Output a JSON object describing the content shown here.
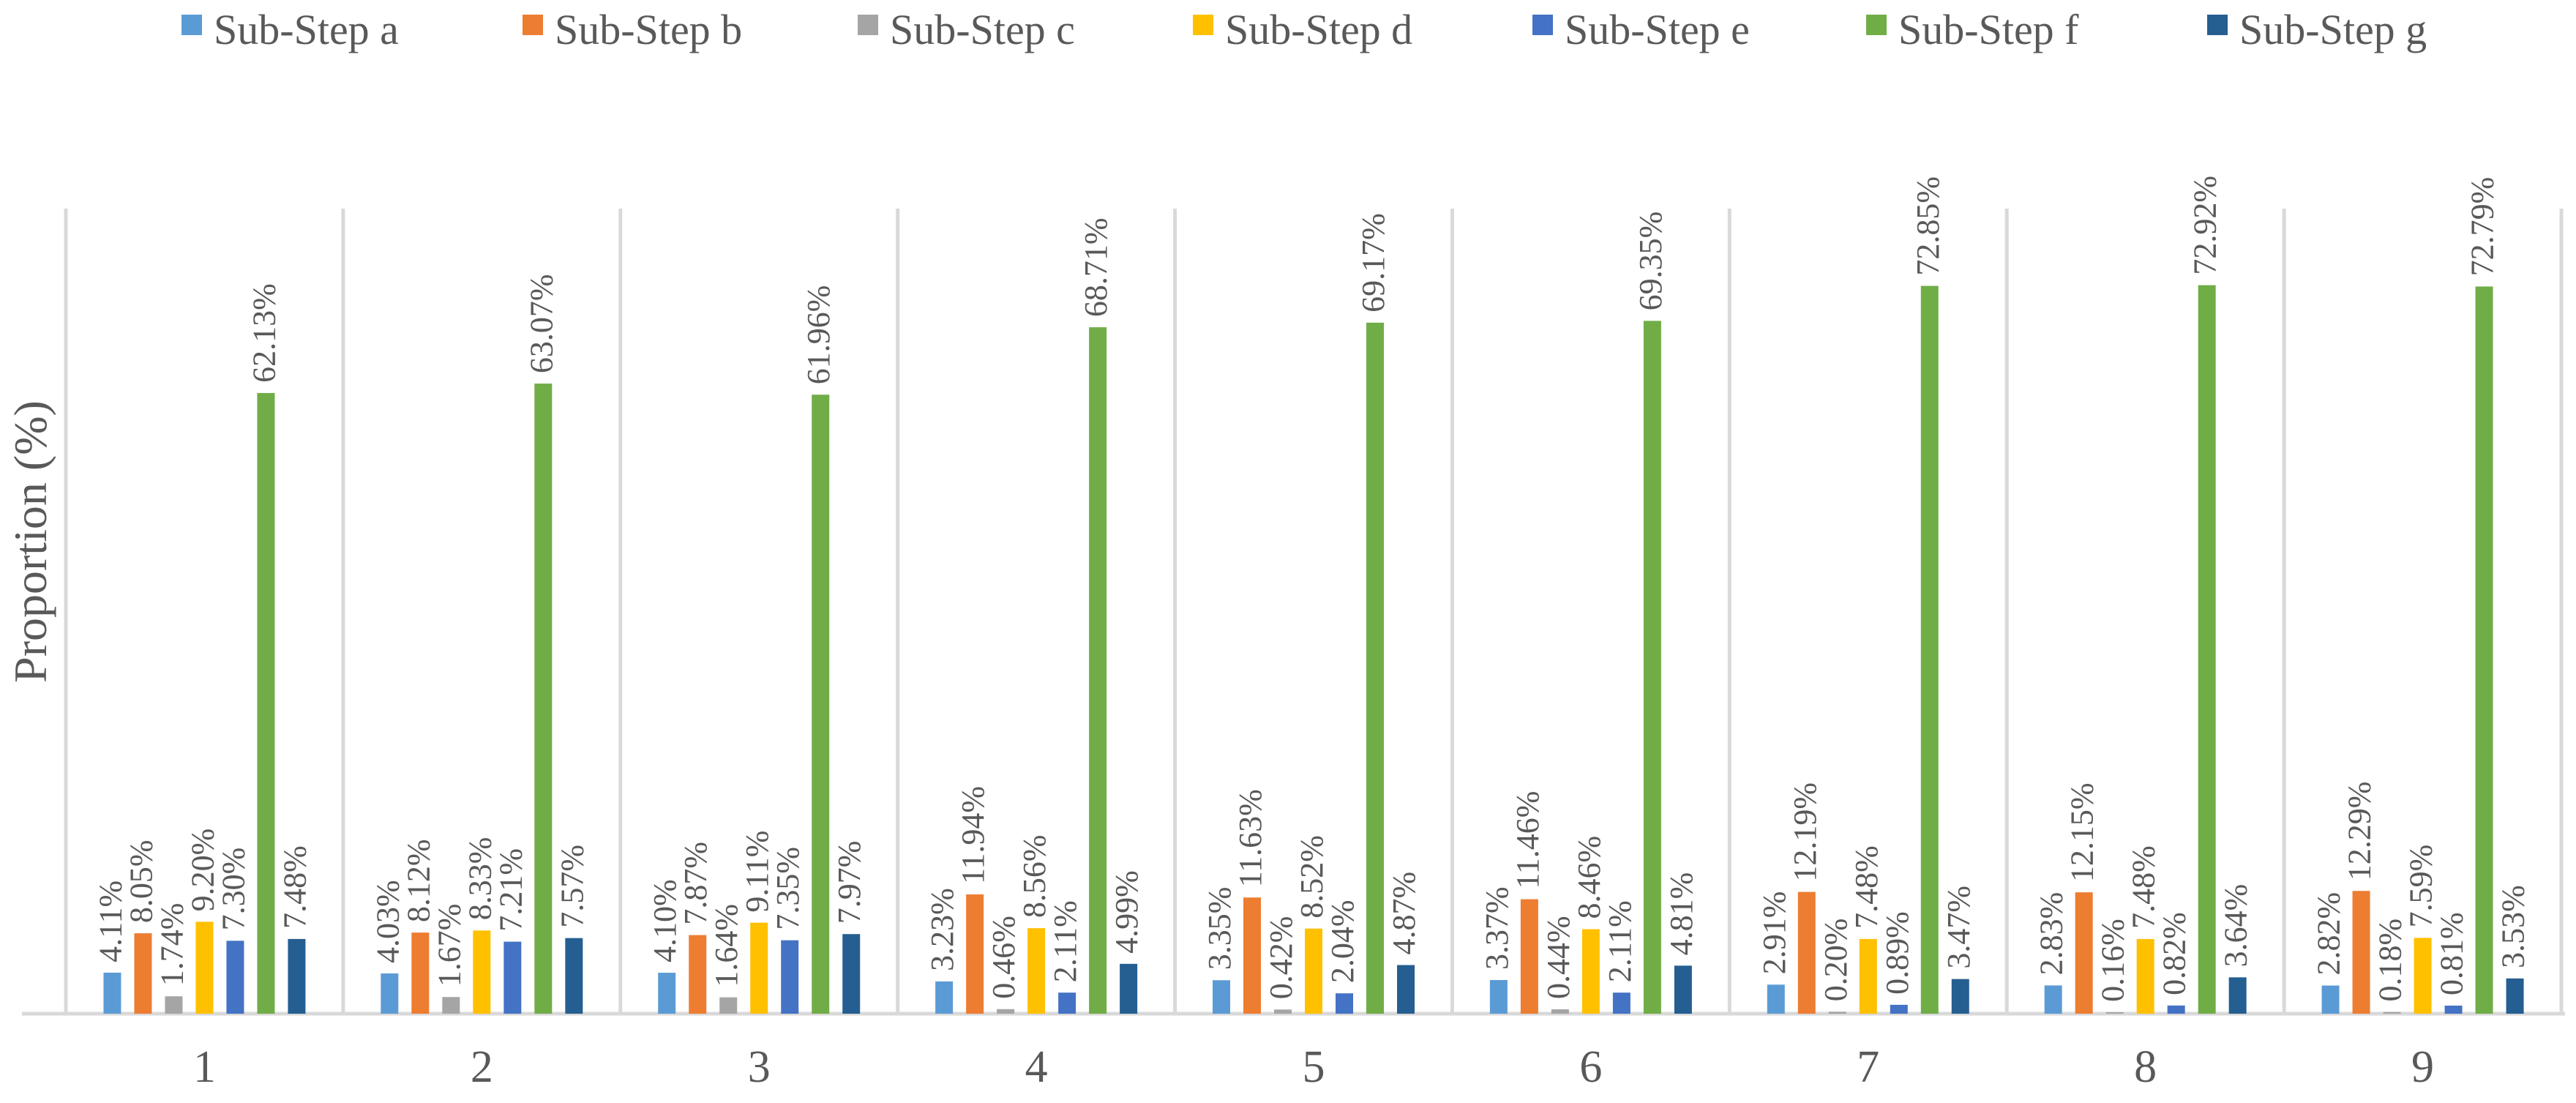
{
  "chart_data": {
    "type": "bar",
    "title": "",
    "xlabel": "",
    "ylabel": "Proportion (%)",
    "categories": [
      "1",
      "2",
      "3",
      "4",
      "5",
      "6",
      "7",
      "8",
      "9"
    ],
    "ylim": [
      0,
      100
    ],
    "grid": false,
    "legend_position": "top",
    "series": [
      {
        "name": "Sub-Step a",
        "color": "#5B9BD5",
        "values": [
          4.11,
          4.03,
          4.1,
          3.23,
          3.35,
          3.37,
          2.91,
          2.83,
          2.82
        ],
        "labels": [
          "4.11%",
          "4.03%",
          "4.10%",
          "3.23%",
          "3.35%",
          "3.37%",
          "2.91%",
          "2.83%",
          "2.82%"
        ]
      },
      {
        "name": "Sub-Step b",
        "color": "#ED7D31",
        "values": [
          8.05,
          8.12,
          7.87,
          11.94,
          11.63,
          11.46,
          12.19,
          12.15,
          12.29
        ],
        "labels": [
          "8.05%",
          "8.12%",
          "7.87%",
          "11.94%",
          "11.63%",
          "11.46%",
          "12.19%",
          "12.15%",
          "12.29%"
        ]
      },
      {
        "name": "Sub-Step c",
        "color": "#A5A5A5",
        "values": [
          1.74,
          1.67,
          1.64,
          0.46,
          0.42,
          0.44,
          0.2,
          0.16,
          0.18
        ],
        "labels": [
          "1.74%",
          "1.67%",
          "1.64%",
          "0.46%",
          "0.42%",
          "0.44%",
          "0.20%",
          "0.16%",
          "0.18%"
        ]
      },
      {
        "name": "Sub-Step d",
        "color": "#FFC000",
        "values": [
          9.2,
          8.33,
          9.11,
          8.56,
          8.52,
          8.46,
          7.48,
          7.48,
          7.59
        ],
        "labels": [
          "9.20%",
          "8.33%",
          "9.11%",
          "8.56%",
          "8.52%",
          "8.46%",
          "7.48%",
          "7.48%",
          "7.59%"
        ]
      },
      {
        "name": "Sub-Step e",
        "color": "#4472C4",
        "values": [
          7.3,
          7.21,
          7.35,
          2.11,
          2.04,
          2.11,
          0.89,
          0.82,
          0.81
        ],
        "labels": [
          "7.30%",
          "7.21%",
          "7.35%",
          "2.11%",
          "2.04%",
          "2.11%",
          "0.89%",
          "0.82%",
          "0.81%"
        ]
      },
      {
        "name": "Sub-Step f",
        "color": "#70AD47",
        "values": [
          62.13,
          63.07,
          61.96,
          68.71,
          69.17,
          69.35,
          72.85,
          72.92,
          72.79
        ],
        "labels": [
          "62.13%",
          "63.07%",
          "61.96%",
          "68.71%",
          "69.17%",
          "69.35%",
          "72.85%",
          "72.92%",
          "72.79%"
        ]
      },
      {
        "name": "Sub-Step g",
        "color": "#255E91",
        "values": [
          7.48,
          7.57,
          7.97,
          4.99,
          4.87,
          4.81,
          3.47,
          3.64,
          3.53
        ],
        "labels": [
          "7.48%",
          "7.57%",
          "7.97%",
          "4.99%",
          "4.87%",
          "4.81%",
          "3.47%",
          "3.64%",
          "3.53%"
        ]
      }
    ]
  }
}
